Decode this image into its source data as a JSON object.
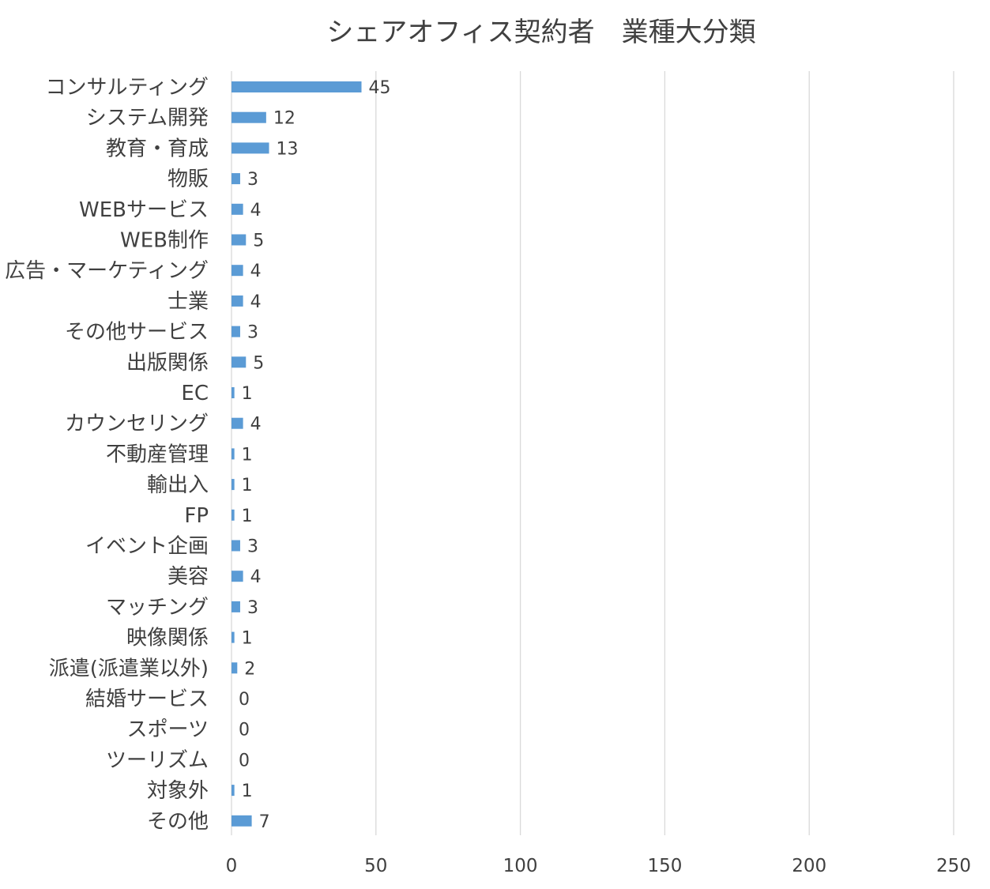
{
  "chart_data": {
    "type": "bar",
    "orientation": "horizontal",
    "title": "シェアオフィス契約者　業種大分類",
    "xlabel": "",
    "ylabel": "",
    "categories": [
      "コンサルティング",
      "システム開発",
      "教育・育成",
      "物販",
      "WEBサービス",
      "WEB制作",
      "広告・マーケティング",
      "士業",
      "その他サービス",
      "出版関係",
      "EC",
      "カウンセリング",
      "不動産管理",
      "輸出入",
      "FP",
      "イベント企画",
      "美容",
      "マッチング",
      "映像関係",
      "派遣(派遣業以外)",
      "結婚サービス",
      "スポーツ",
      "ツーリズム",
      "対象外",
      "その他"
    ],
    "values": [
      45,
      12,
      13,
      3,
      4,
      5,
      4,
      4,
      3,
      5,
      1,
      4,
      1,
      1,
      1,
      3,
      4,
      3,
      1,
      2,
      0,
      0,
      0,
      1,
      7
    ],
    "xlim": [
      0,
      250
    ],
    "ticks": [
      "0",
      "50",
      "100",
      "150",
      "200",
      "250"
    ],
    "tick_values": [
      0,
      50,
      100,
      150,
      200,
      250
    ],
    "data_labels": true,
    "grid": "vertical",
    "legend": "none",
    "colors": {
      "bar": "#5b9bd5",
      "grid": "#d9d9d9",
      "text": "#404040"
    }
  }
}
